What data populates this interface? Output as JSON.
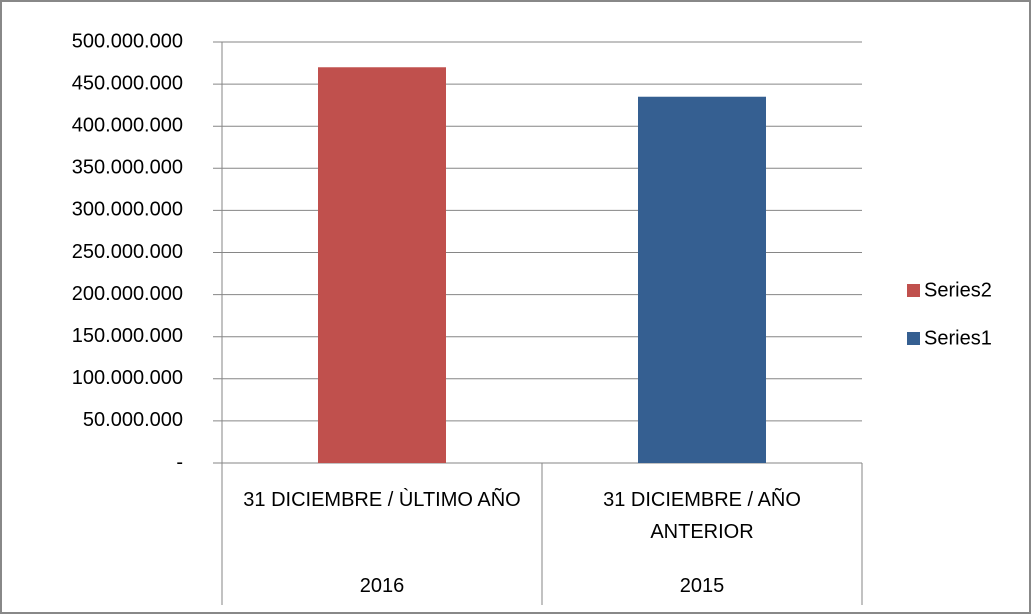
{
  "chart_data": {
    "type": "bar",
    "categories": [
      "31 DICIEMBRE / ÙLTIMO AÑO",
      "31 DICIEMBRE / AÑO ANTERIOR"
    ],
    "category_groups": [
      "2016",
      "2015"
    ],
    "series": [
      {
        "name": "Series1",
        "color": "#355f91",
        "values": [
          null,
          435000000
        ]
      },
      {
        "name": "Series2",
        "color": "#c0504d",
        "values": [
          470000000,
          null
        ]
      }
    ],
    "ylim": [
      0,
      500000000
    ],
    "yticks": [
      {
        "value": 0,
        "label": "-"
      },
      {
        "value": 50000000,
        "label": "50.000.000"
      },
      {
        "value": 100000000,
        "label": "100.000.000"
      },
      {
        "value": 150000000,
        "label": "150.000.000"
      },
      {
        "value": 200000000,
        "label": "200.000.000"
      },
      {
        "value": 250000000,
        "label": "250.000.000"
      },
      {
        "value": 300000000,
        "label": "300.000.000"
      },
      {
        "value": 350000000,
        "label": "350.000.000"
      },
      {
        "value": 400000000,
        "label": "400.000.000"
      },
      {
        "value": 450000000,
        "label": "450.000.000"
      },
      {
        "value": 500000000,
        "label": "500.000.000"
      }
    ],
    "grid": true,
    "legend": "right"
  }
}
